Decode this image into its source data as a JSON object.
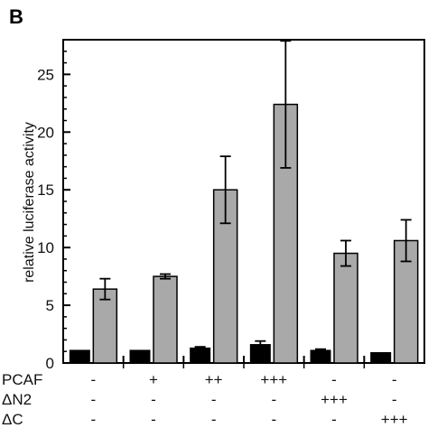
{
  "panel_label": "B",
  "chart_data": {
    "type": "bar",
    "title": "",
    "xlabel": "",
    "ylabel": "relative luciferase activity",
    "ylim": [
      0,
      28
    ],
    "yticks": [
      0,
      5,
      10,
      15,
      20,
      25
    ],
    "grid": false,
    "groups": 6,
    "series": [
      {
        "color": "#000000",
        "values": [
          1.1,
          1.1,
          1.3,
          1.6,
          1.1,
          0.9
        ],
        "errors": [
          0,
          0,
          0.1,
          0.3,
          0.1,
          0
        ]
      },
      {
        "color": "#a9a9a9",
        "values": [
          6.4,
          7.5,
          15.0,
          22.4,
          9.5,
          10.6
        ],
        "errors": [
          0.9,
          0.2,
          2.9,
          5.5,
          1.1,
          1.8
        ]
      }
    ],
    "condition_rows": [
      {
        "label": "PCAF",
        "values": [
          "-",
          "+",
          "++",
          "+++",
          "-",
          "-"
        ]
      },
      {
        "label": "ΔN2",
        "values": [
          "-",
          "-",
          "-",
          "-",
          "+++",
          "-"
        ]
      },
      {
        "label": "ΔC",
        "values": [
          "-",
          "-",
          "-",
          "-",
          "-",
          "+++"
        ]
      }
    ]
  }
}
